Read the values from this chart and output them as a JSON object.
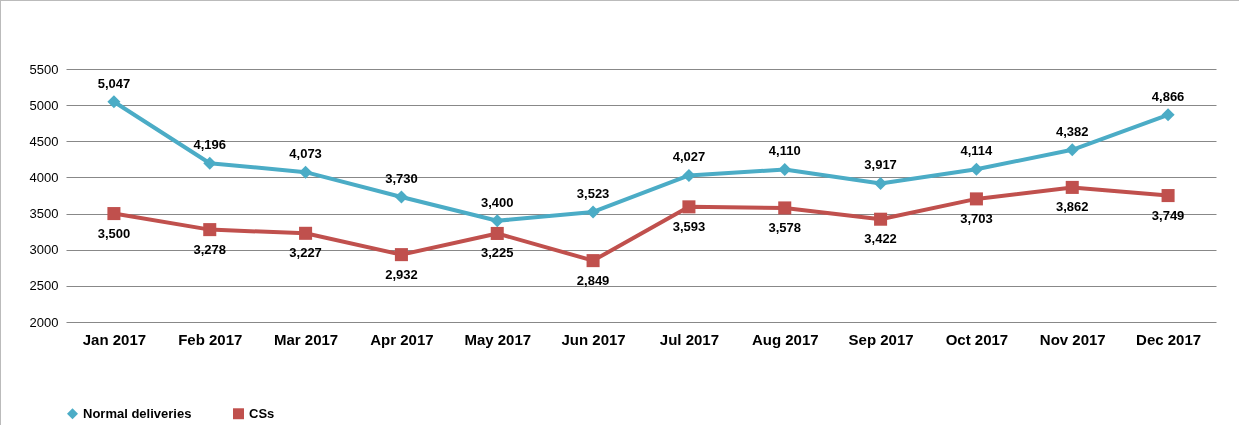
{
  "chart_data": {
    "type": "line",
    "categories": [
      "Jan 2017",
      "Feb 2017",
      "Mar 2017",
      "Apr 2017",
      "May 2017",
      "Jun 2017",
      "Jul 2017",
      "Aug 2017",
      "Sep 2017",
      "Oct 2017",
      "Nov 2017",
      "Dec 2017"
    ],
    "series": [
      {
        "name": "Normal deliveries",
        "color": "#4bacc6",
        "marker": "diamond",
        "values": [
          5047,
          4196,
          4073,
          3730,
          3400,
          3523,
          4027,
          4110,
          3917,
          4114,
          4382,
          4866
        ],
        "value_labels": [
          "5,047",
          "4,196",
          "4,073",
          "3,730",
          "3,400",
          "3,523",
          "4,027",
          "4,110",
          "3,917",
          "4,114",
          "4,382",
          "4,866"
        ]
      },
      {
        "name": "CSs",
        "color": "#c0504d",
        "marker": "square",
        "values": [
          3500,
          3278,
          3227,
          2932,
          3225,
          2849,
          3593,
          3578,
          3422,
          3703,
          3862,
          3749
        ],
        "value_labels": [
          "3,500",
          "3,278",
          "3,227",
          "2,932",
          "3,225",
          "2,849",
          "3,593",
          "3,578",
          "3,422",
          "3,703",
          "3,862",
          "3,749"
        ]
      }
    ],
    "ylim": [
      2000,
      5500
    ],
    "yticks": [
      2000,
      2500,
      3000,
      3500,
      4000,
      4500,
      5000,
      5500
    ],
    "grid": "y",
    "legend": "bottom",
    "data_labels": true
  }
}
